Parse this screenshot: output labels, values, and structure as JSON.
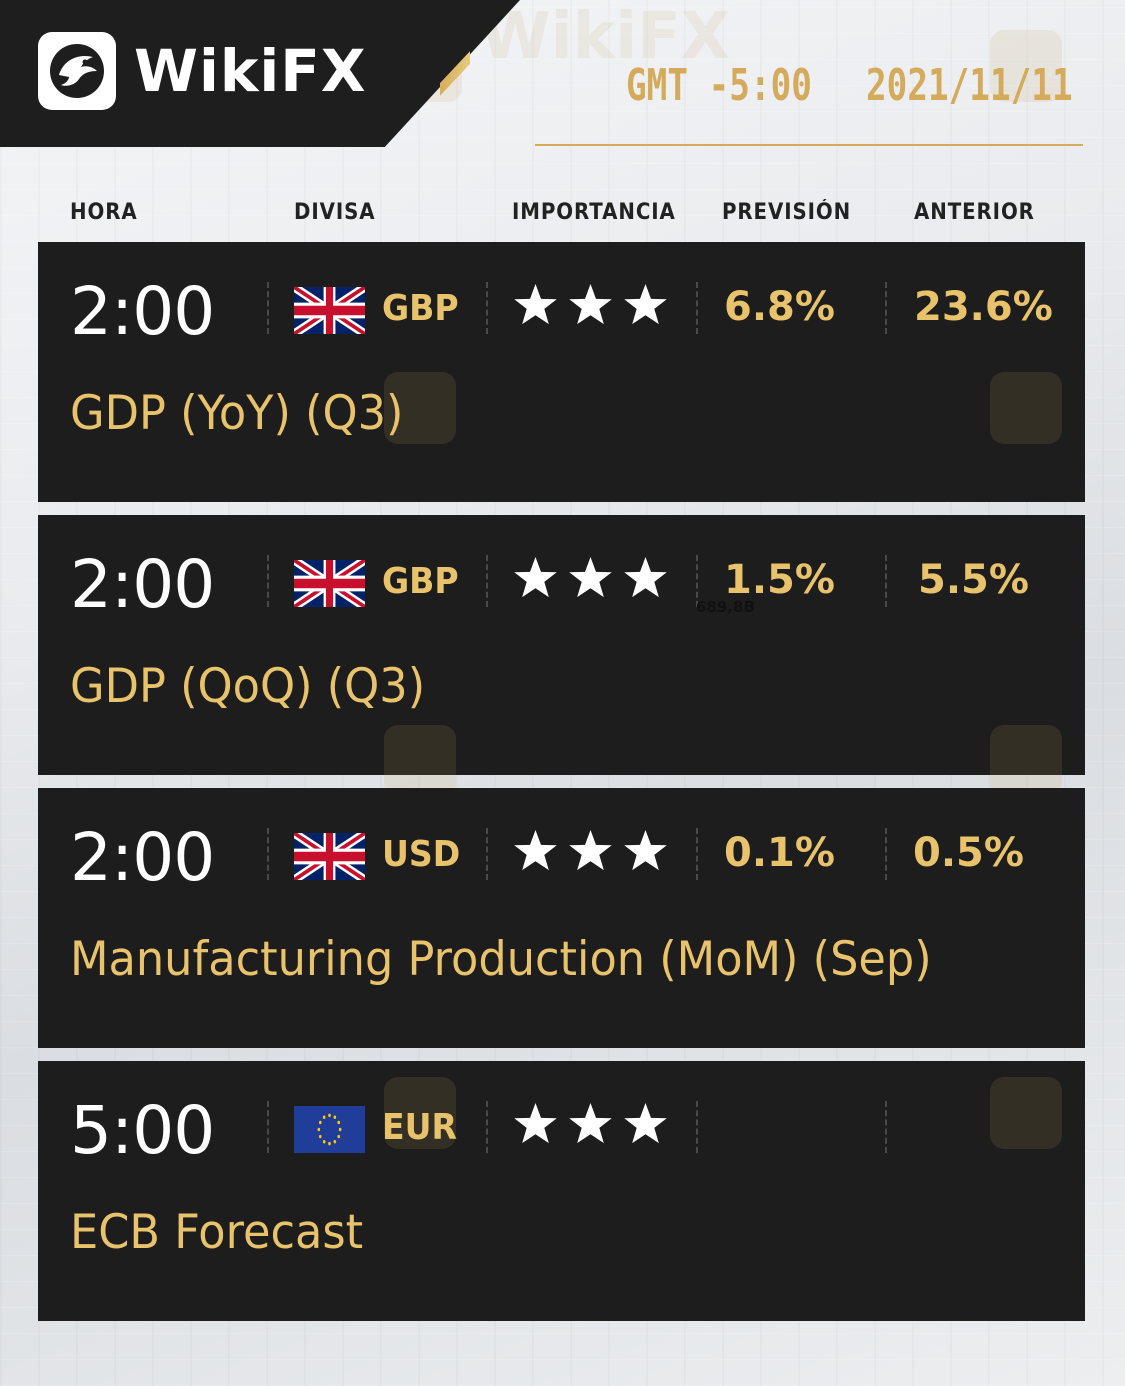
{
  "brand": {
    "name": "WikiFX"
  },
  "header": {
    "timezone": "GMT -5:00",
    "date": "2021/11/11"
  },
  "columns": [
    "HORA",
    "DIVISA",
    "IMPORTANCIA",
    "PREVISIÓN",
    "ANTERIOR"
  ],
  "events": [
    {
      "time": "2:00",
      "flag": "uk-flag",
      "currency": "GBP",
      "importance": 3,
      "forecast": "6.8%",
      "previous": "23.6%",
      "title": "GDP (YoY) (Q3)"
    },
    {
      "time": "2:00",
      "flag": "uk-flag",
      "currency": "GBP",
      "importance": 3,
      "forecast": "1.5%",
      "previous": "5.5%",
      "title": "GDP (QoQ) (Q3)"
    },
    {
      "time": "2:00",
      "flag": "uk-flag",
      "currency": "USD",
      "importance": 3,
      "forecast": "0.1%",
      "previous": "0.5%",
      "title": "Manufacturing Production (MoM) (Sep)"
    },
    {
      "time": "5:00",
      "flag": "eu-flag",
      "currency": "EUR",
      "importance": 3,
      "forecast": "",
      "previous": "",
      "title": "ECB Forecast"
    }
  ],
  "stray_text": "689,8B",
  "colors": {
    "gold": "#e8c36b",
    "header_gold": "#d4aa5b",
    "card_bg": "#1d1d1d",
    "header_bg": "#1e1e1e"
  }
}
